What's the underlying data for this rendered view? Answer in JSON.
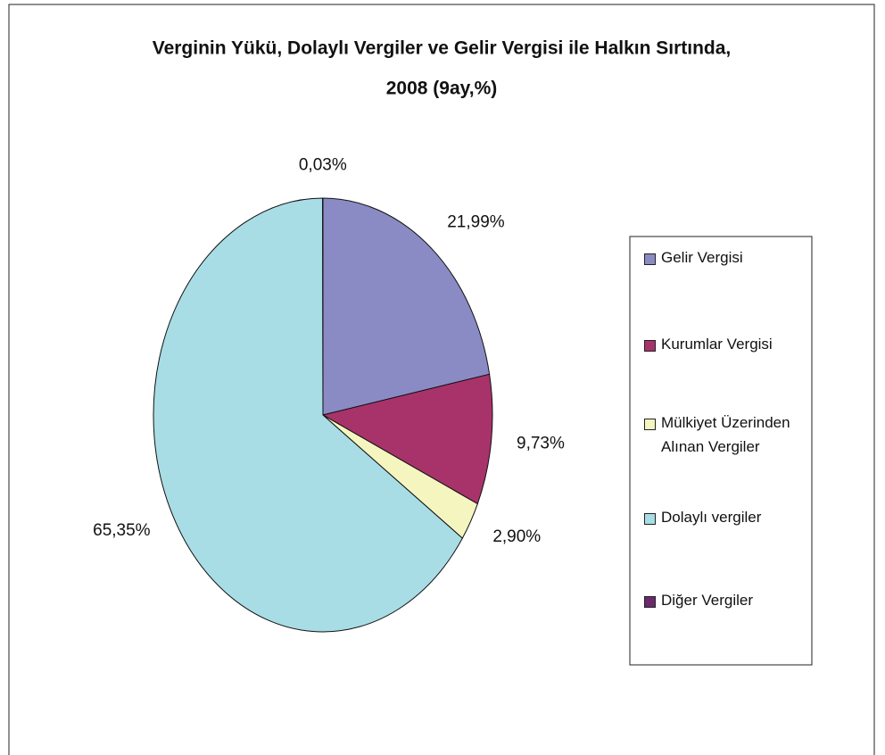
{
  "chart_data": {
    "type": "pie",
    "title": [
      "Verginin Yükü, Dolaylı Vergiler ve Gelir Vergisi ile Halkın Sırtında,",
      "2008 (9ay,%)"
    ],
    "categories": [
      "Gelir Vergisi",
      "Kurumlar Vergisi",
      "Mülkiyet Üzerinden Alınan Vergiler",
      "Dolaylı vergiler",
      "Diğer Vergiler"
    ],
    "values": [
      21.99,
      9.73,
      2.9,
      65.35,
      0.03
    ],
    "value_labels": [
      "21,99%",
      "9,73%",
      "2,90%",
      "65,35%",
      "0,03%"
    ],
    "colors": [
      "#8a8ac4",
      "#a8336b",
      "#f5f5c0",
      "#a8dde5",
      "#6b2a6b"
    ],
    "legend": "right"
  }
}
